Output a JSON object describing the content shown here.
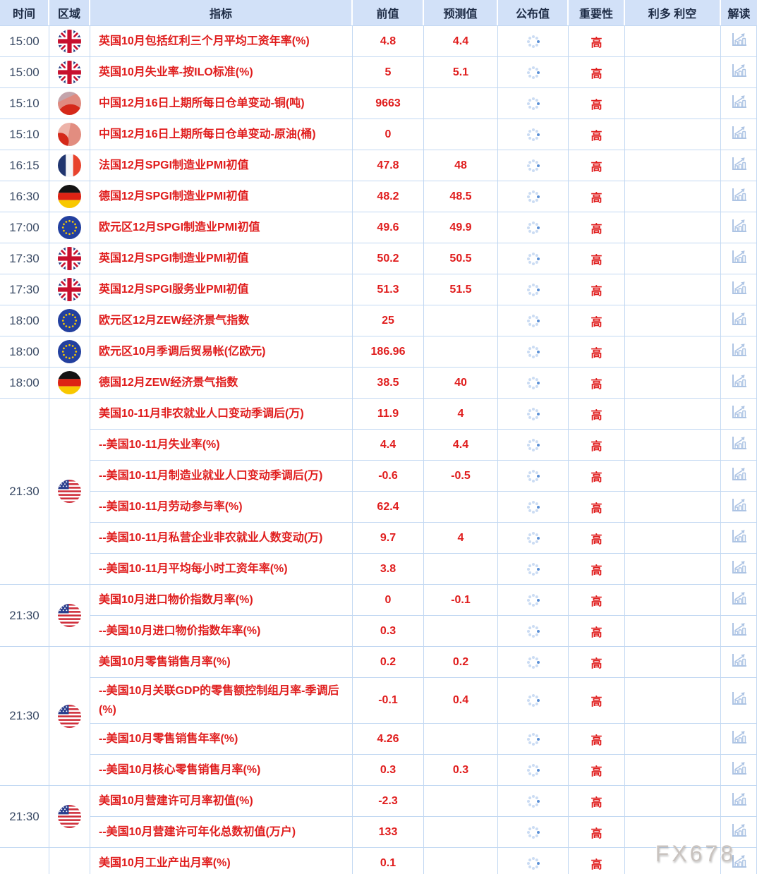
{
  "header": {
    "columns": [
      "时间",
      "区域",
      "指标",
      "前值",
      "预测值",
      "公布值",
      "重要性",
      "利多 利空",
      "解读"
    ]
  },
  "watermark": "FX678",
  "icons": {
    "published": "loading-spinner-icon",
    "interpret": "chart-trend-icon",
    "regions": {
      "uk": "flag-uk-icon",
      "cn": "flag-china-icon",
      "cn2": "flag-china-icon",
      "fr": "flag-france-icon",
      "de": "flag-germany-icon",
      "eu": "flag-eu-icon",
      "us": "flag-us-icon"
    }
  },
  "colors": {
    "accent_red": "#e01d1d",
    "header_bg": "#d2e1f8",
    "border": "#c2d8f2",
    "icon_blue": "#adc4e4",
    "spinner_active": "#5b90d6"
  },
  "groups": [
    {
      "time": "15:00",
      "region": "uk",
      "rows": [
        {
          "indicator": "英国10月包括红利三个月平均工资年率(%)",
          "previous": "4.8",
          "forecast": "4.4",
          "importance": "高"
        }
      ]
    },
    {
      "time": "15:00",
      "region": "uk",
      "rows": [
        {
          "indicator": "英国10月失业率-按ILO标准(%)",
          "previous": "5",
          "forecast": "5.1",
          "importance": "高"
        }
      ]
    },
    {
      "time": "15:10",
      "region": "cn",
      "rows": [
        {
          "indicator": "中国12月16日上期所每日仓单变动-铜(吨)",
          "previous": "9663",
          "forecast": "",
          "importance": "高"
        }
      ]
    },
    {
      "time": "15:10",
      "region": "cn2",
      "rows": [
        {
          "indicator": "中国12月16日上期所每日仓单变动-原油(桶)",
          "previous": "0",
          "forecast": "",
          "importance": "高"
        }
      ]
    },
    {
      "time": "16:15",
      "region": "fr",
      "rows": [
        {
          "indicator": "法国12月SPGI制造业PMI初值",
          "previous": "47.8",
          "forecast": "48",
          "importance": "高"
        }
      ]
    },
    {
      "time": "16:30",
      "region": "de",
      "rows": [
        {
          "indicator": "德国12月SPGI制造业PMI初值",
          "previous": "48.2",
          "forecast": "48.5",
          "importance": "高"
        }
      ]
    },
    {
      "time": "17:00",
      "region": "eu",
      "rows": [
        {
          "indicator": "欧元区12月SPGI制造业PMI初值",
          "previous": "49.6",
          "forecast": "49.9",
          "importance": "高"
        }
      ]
    },
    {
      "time": "17:30",
      "region": "uk",
      "rows": [
        {
          "indicator": "英国12月SPGI制造业PMI初值",
          "previous": "50.2",
          "forecast": "50.5",
          "importance": "高"
        }
      ]
    },
    {
      "time": "17:30",
      "region": "uk",
      "rows": [
        {
          "indicator": "英国12月SPGI服务业PMI初值",
          "previous": "51.3",
          "forecast": "51.5",
          "importance": "高"
        }
      ]
    },
    {
      "time": "18:00",
      "region": "eu",
      "rows": [
        {
          "indicator": "欧元区12月ZEW经济景气指数",
          "previous": "25",
          "forecast": "",
          "importance": "高"
        }
      ]
    },
    {
      "time": "18:00",
      "region": "eu",
      "rows": [
        {
          "indicator": "欧元区10月季调后贸易帐(亿欧元)",
          "previous": "186.96",
          "forecast": "",
          "importance": "高"
        }
      ]
    },
    {
      "time": "18:00",
      "region": "de",
      "rows": [
        {
          "indicator": "德国12月ZEW经济景气指数",
          "previous": "38.5",
          "forecast": "40",
          "importance": "高"
        }
      ]
    },
    {
      "time": "21:30",
      "region": "us",
      "rows": [
        {
          "indicator": "美国10-11月非农就业人口变动季调后(万)",
          "previous": "11.9",
          "forecast": "4",
          "importance": "高"
        },
        {
          "indicator": "--美国10-11月失业率(%)",
          "previous": "4.4",
          "forecast": "4.4",
          "importance": "高"
        },
        {
          "indicator": "--美国10-11月制造业就业人口变动季调后(万)",
          "previous": "-0.6",
          "forecast": "-0.5",
          "importance": "高"
        },
        {
          "indicator": "--美国10-11月劳动参与率(%)",
          "previous": "62.4",
          "forecast": "",
          "importance": "高"
        },
        {
          "indicator": "--美国10-11月私营企业非农就业人数变动(万)",
          "previous": "9.7",
          "forecast": "4",
          "importance": "高"
        },
        {
          "indicator": "--美国10-11月平均每小时工资年率(%)",
          "previous": "3.8",
          "forecast": "",
          "importance": "高"
        }
      ]
    },
    {
      "time": "21:30",
      "region": "us",
      "rows": [
        {
          "indicator": "美国10月进口物价指数月率(%)",
          "previous": "0",
          "forecast": "-0.1",
          "importance": "高"
        },
        {
          "indicator": "--美国10月进口物价指数年率(%)",
          "previous": "0.3",
          "forecast": "",
          "importance": "高"
        }
      ]
    },
    {
      "time": "21:30",
      "region": "us",
      "rows": [
        {
          "indicator": "美国10月零售销售月率(%)",
          "previous": "0.2",
          "forecast": "0.2",
          "importance": "高"
        },
        {
          "indicator": "--美国10月关联GDP的零售额控制组月率-季调后(%)",
          "previous": "-0.1",
          "forecast": "0.4",
          "importance": "高",
          "tall": true
        },
        {
          "indicator": "--美国10月零售销售年率(%)",
          "previous": "4.26",
          "forecast": "",
          "importance": "高"
        },
        {
          "indicator": "--美国10月核心零售销售月率(%)",
          "previous": "0.3",
          "forecast": "0.3",
          "importance": "高"
        }
      ]
    },
    {
      "time": "21:30",
      "region": "us",
      "rows": [
        {
          "indicator": "美国10月营建许可月率初值(%)",
          "previous": "-2.3",
          "forecast": "",
          "importance": "高"
        },
        {
          "indicator": "--美国10月营建许可年化总数初值(万户)",
          "previous": "133",
          "forecast": "",
          "importance": "高"
        }
      ]
    },
    {
      "time": "",
      "region": "",
      "rows": [
        {
          "indicator": "美国10月工业产出月率(%)",
          "previous": "0.1",
          "forecast": "",
          "importance": "高"
        }
      ]
    }
  ]
}
